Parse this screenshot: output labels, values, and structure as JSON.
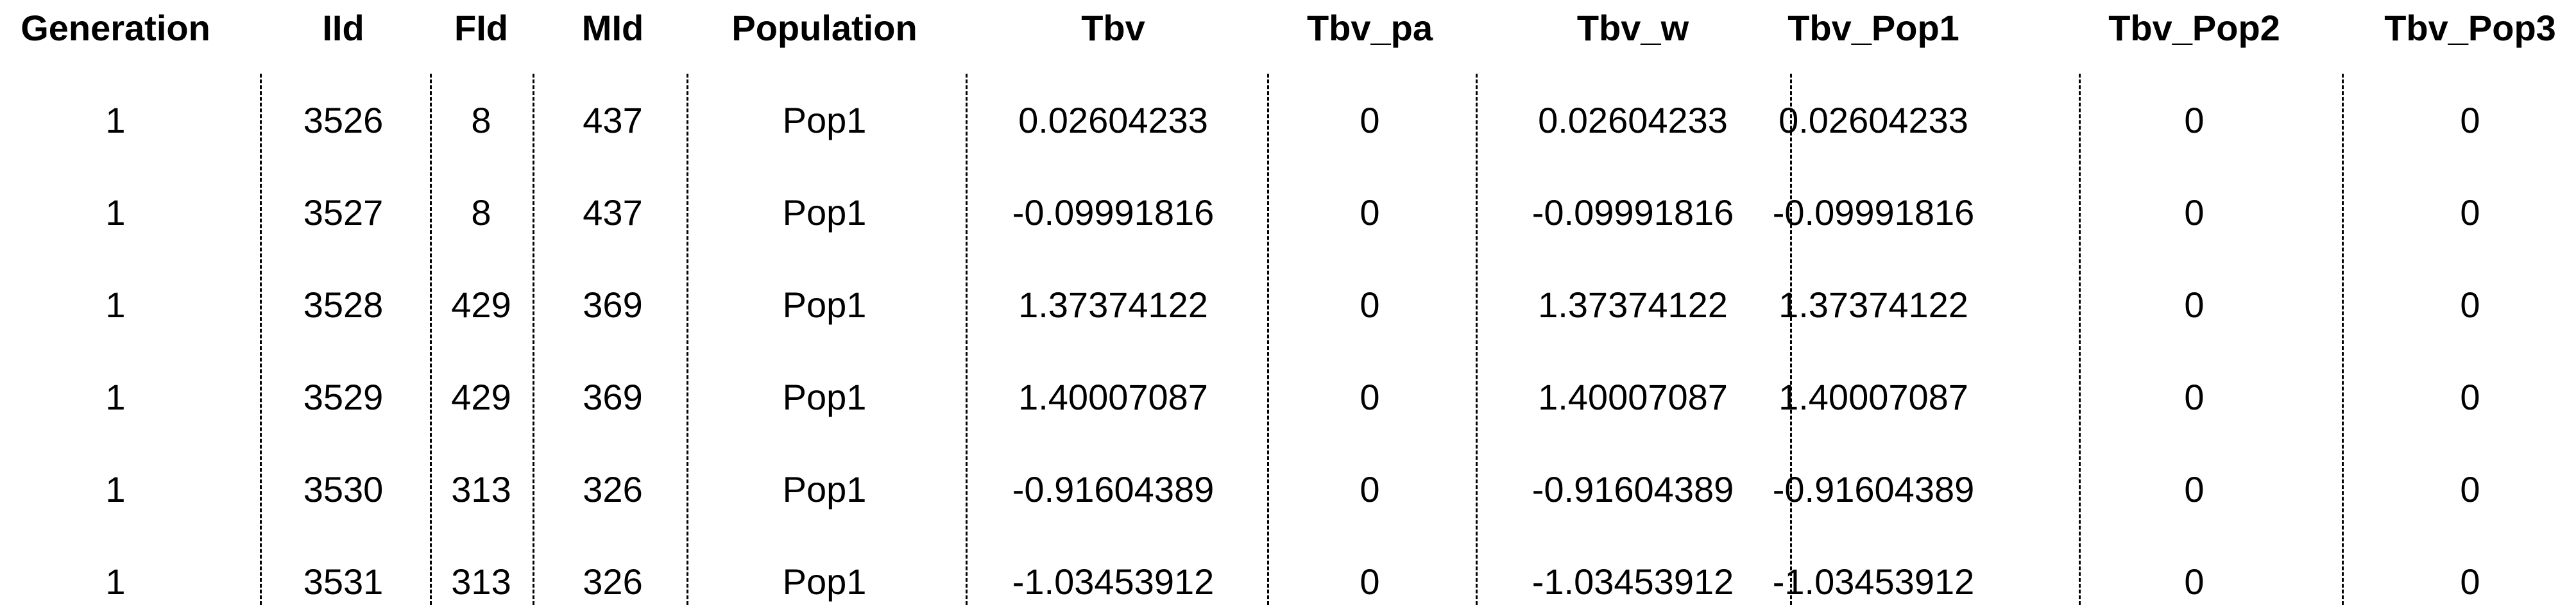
{
  "table": {
    "columns": [
      "Generation",
      "IId",
      "FId",
      "MId",
      "Population",
      "Tbv",
      "Tbv_pa",
      "Tbv_w",
      "Tbv_Pop1",
      "Tbv_Pop2",
      "Tbv_Pop3"
    ],
    "rows": [
      [
        "1",
        "3526",
        "8",
        "437",
        "Pop1",
        "0.02604233",
        "0",
        "0.02604233",
        "0.02604233",
        "0",
        "0"
      ],
      [
        "1",
        "3527",
        "8",
        "437",
        "Pop1",
        "-0.09991816",
        "0",
        "-0.09991816",
        "-0.09991816",
        "0",
        "0"
      ],
      [
        "1",
        "3528",
        "429",
        "369",
        "Pop1",
        "1.37374122",
        "0",
        "1.37374122",
        "1.37374122",
        "0",
        "0"
      ],
      [
        "1",
        "3529",
        "429",
        "369",
        "Pop1",
        "1.40007087",
        "0",
        "1.40007087",
        "1.40007087",
        "0",
        "0"
      ],
      [
        "1",
        "3530",
        "313",
        "326",
        "Pop1",
        "-0.91604389",
        "0",
        "-0.91604389",
        "-0.91604389",
        "0",
        "0"
      ],
      [
        "1",
        "3531",
        "313",
        "326",
        "Pop1",
        "-1.03453912",
        "0",
        "-1.03453912",
        "-1.03453912",
        "0",
        "0"
      ]
    ]
  }
}
